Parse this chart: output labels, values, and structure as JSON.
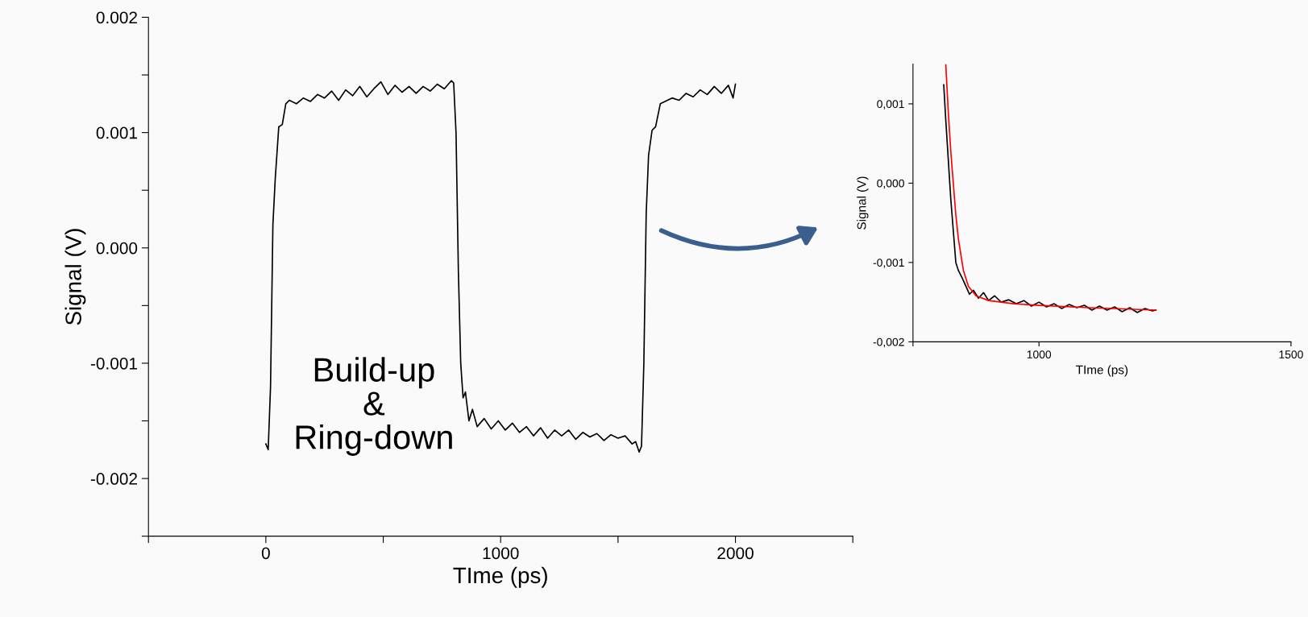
{
  "chart_data": [
    {
      "type": "line",
      "xlabel": "TIme (ps)",
      "ylabel": "Signal (V)",
      "xlim": [
        -500,
        2500
      ],
      "ylim": [
        -0.0025,
        0.002
      ],
      "xticks": [
        {
          "value": -500,
          "label": null
        },
        0,
        {
          "value": 500,
          "label": null
        },
        1000,
        {
          "value": 1500,
          "label": null
        },
        2000,
        {
          "value": 2500,
          "label": null
        }
      ],
      "yticks": [
        {
          "value": -0.0025,
          "label": null
        },
        {
          "value": -0.002,
          "label": "-0.002"
        },
        {
          "value": -0.0015,
          "label": null
        },
        {
          "value": -0.001,
          "label": "-0.001"
        },
        {
          "value": -0.0005,
          "label": null
        },
        {
          "value": 0,
          "label": "0.000"
        },
        {
          "value": 0.0005,
          "label": null
        },
        {
          "value": 0.001,
          "label": "0.001"
        },
        {
          "value": 0.0015,
          "label": null
        },
        {
          "value": 0.002,
          "label": "0.002"
        }
      ],
      "grid": false,
      "legend": false,
      "annotations": [
        "Build-up\n&\nRing-down"
      ],
      "series": [
        {
          "color": "#000000",
          "x": [
            0,
            10,
            20,
            30,
            40,
            55,
            70,
            85,
            100,
            130,
            160,
            190,
            220,
            250,
            280,
            310,
            340,
            370,
            400,
            430,
            460,
            490,
            520,
            550,
            580,
            610,
            640,
            670,
            700,
            730,
            760,
            790,
            800,
            810,
            820,
            830,
            840,
            850,
            865,
            880,
            900,
            930,
            960,
            990,
            1020,
            1050,
            1080,
            1110,
            1140,
            1170,
            1200,
            1230,
            1260,
            1290,
            1320,
            1350,
            1380,
            1410,
            1440,
            1470,
            1500,
            1530,
            1560,
            1575,
            1590,
            1600,
            1610,
            1620,
            1630,
            1645,
            1660,
            1680,
            1700,
            1730,
            1760,
            1790,
            1820,
            1850,
            1880,
            1910,
            1940,
            1970,
            1990,
            2000
          ],
          "values": [
            -0.0017,
            -0.00175,
            -0.0012,
            0.0002,
            0.0006,
            0.00105,
            0.00107,
            0.00125,
            0.00128,
            0.00125,
            0.0013,
            0.00127,
            0.00133,
            0.0013,
            0.00136,
            0.00128,
            0.00137,
            0.00132,
            0.0014,
            0.00131,
            0.00138,
            0.00144,
            0.00133,
            0.00141,
            0.00135,
            0.0014,
            0.00134,
            0.0014,
            0.00136,
            0.00142,
            0.00138,
            0.00145,
            0.00143,
            0.001,
            -0.0002,
            -0.001,
            -0.0013,
            -0.00125,
            -0.0015,
            -0.0014,
            -0.00155,
            -0.00148,
            -0.00157,
            -0.0015,
            -0.00158,
            -0.00152,
            -0.0016,
            -0.00155,
            -0.00163,
            -0.00156,
            -0.00165,
            -0.00158,
            -0.00163,
            -0.00158,
            -0.00166,
            -0.0016,
            -0.00164,
            -0.00161,
            -0.00167,
            -0.00162,
            -0.00165,
            -0.00163,
            -0.0017,
            -0.00168,
            -0.00177,
            -0.00172,
            -0.001,
            0.0003,
            0.0008,
            0.00102,
            0.00105,
            0.00125,
            0.00127,
            0.0013,
            0.00128,
            0.00134,
            0.00131,
            0.00137,
            0.00133,
            0.0014,
            0.00134,
            0.00141,
            0.0013,
            0.00142
          ]
        }
      ]
    },
    {
      "type": "line",
      "xlabel": "TIme (ps)",
      "ylabel": "Signal (V)",
      "xlim": [
        750,
        1500
      ],
      "ylim": [
        -0.002,
        0.0015
      ],
      "xticks": [
        {
          "value": 750,
          "label": null
        },
        1000,
        1500
      ],
      "yticks": [
        {
          "value": -0.002,
          "label": "-0,002"
        },
        {
          "value": -0.001,
          "label": "-0,001"
        },
        {
          "value": 0,
          "label": "0,000"
        },
        {
          "value": 0.001,
          "label": "0,001"
        }
      ],
      "grid": false,
      "legend": false,
      "series": [
        {
          "color": "#000000",
          "x": [
            811,
            815,
            820,
            825,
            830,
            835,
            840,
            848,
            855,
            862,
            870,
            880,
            890,
            900,
            912,
            925,
            940,
            955,
            970,
            985,
            1000,
            1015,
            1030,
            1045,
            1060,
            1075,
            1090,
            1105,
            1120,
            1135,
            1150,
            1165,
            1180,
            1195,
            1210,
            1225,
            1232
          ],
          "values": [
            0.00124,
            0.0008,
            0.0003,
            -0.0002,
            -0.0006,
            -0.001,
            -0.0011,
            -0.0012,
            -0.0013,
            -0.0014,
            -0.00135,
            -0.00145,
            -0.00138,
            -0.00148,
            -0.00142,
            -0.0015,
            -0.00147,
            -0.00152,
            -0.00148,
            -0.00155,
            -0.0015,
            -0.00156,
            -0.00152,
            -0.00158,
            -0.00153,
            -0.00157,
            -0.00154,
            -0.0016,
            -0.00155,
            -0.0016,
            -0.00156,
            -0.00162,
            -0.00157,
            -0.00163,
            -0.00158,
            -0.00161,
            -0.0016
          ]
        },
        {
          "color": "#ff0000",
          "x": [
            815,
            820,
            825,
            830,
            835,
            840,
            850,
            860,
            875,
            900,
            950,
            1000,
            1100,
            1232
          ],
          "values": [
            0.0015,
            0.0009,
            0.0004,
            0.0,
            -0.0004,
            -0.0007,
            -0.0011,
            -0.0013,
            -0.00142,
            -0.00148,
            -0.00152,
            -0.00154,
            -0.00157,
            -0.0016
          ]
        }
      ]
    }
  ]
}
